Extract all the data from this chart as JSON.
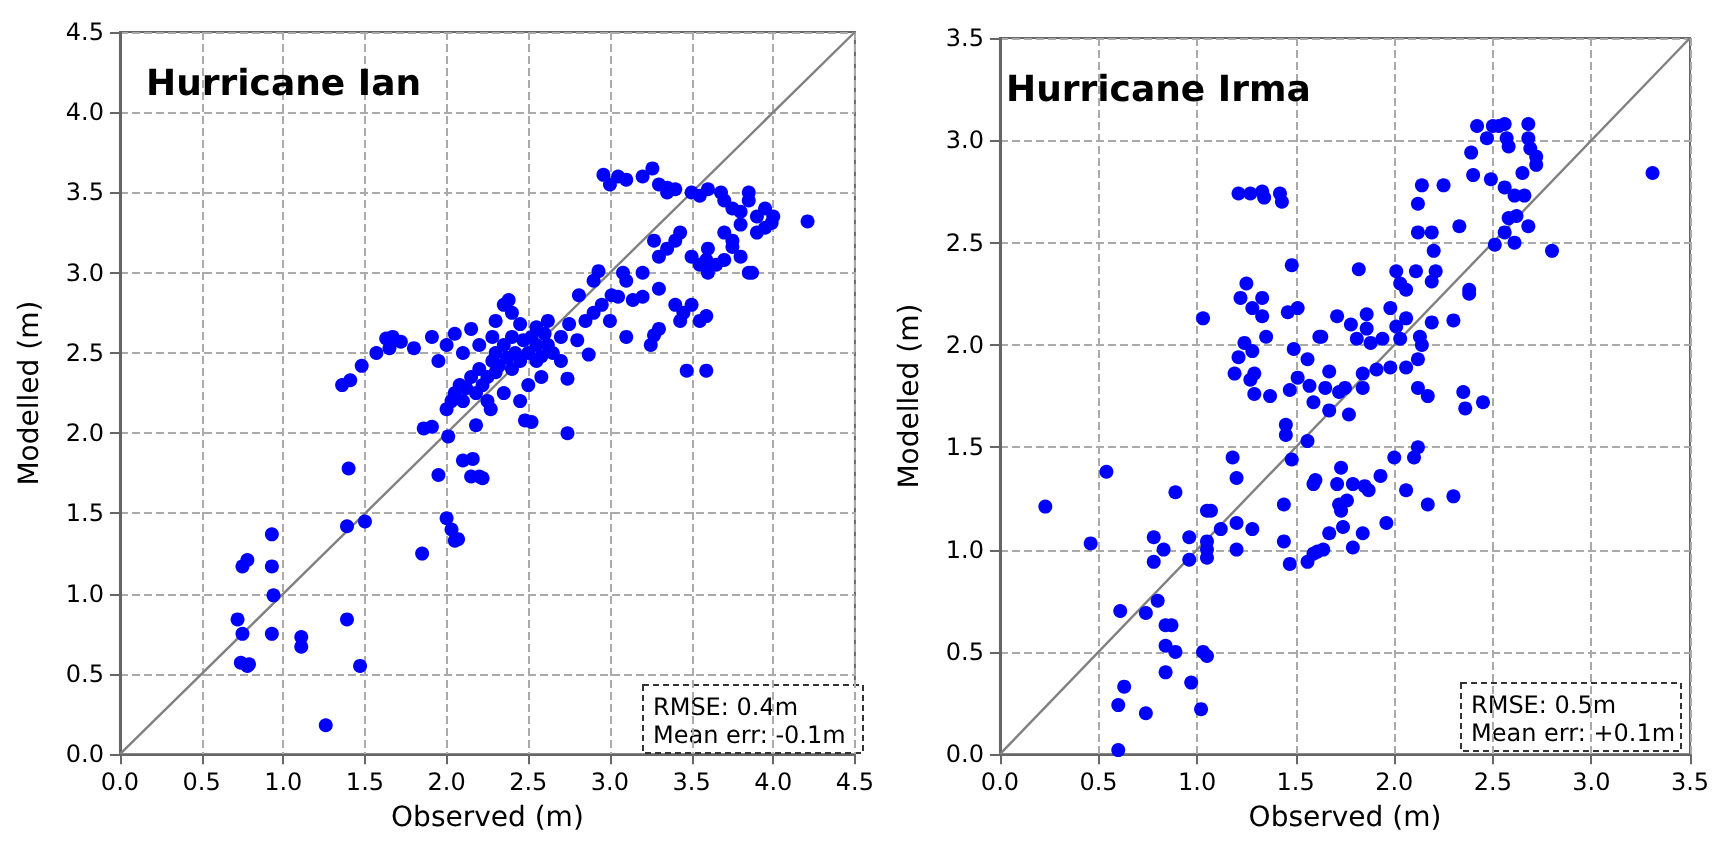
{
  "chart_data": [
    {
      "type": "scatter",
      "title": "Hurricane Ian",
      "xlabel": "Observed (m)",
      "ylabel": "Modelled (m)",
      "annotations": [
        "RMSE: 0.4m",
        "Mean err: -0.1m"
      ],
      "grid": true,
      "xlim": [
        0,
        4.5
      ],
      "ylim": [
        0,
        4.5
      ],
      "xticks": [
        {
          "value": 0,
          "label": "0.0"
        },
        {
          "value": 0.5,
          "label": "0.5"
        },
        {
          "value": 1,
          "label": "1.0"
        },
        {
          "value": 1.5,
          "label": "1.5"
        },
        {
          "value": 2,
          "label": "2.0"
        },
        {
          "value": 2.5,
          "label": "2.5"
        },
        {
          "value": 3,
          "label": "3.0"
        },
        {
          "value": 3.5,
          "label": "3.5"
        },
        {
          "value": 4,
          "label": "4.0"
        },
        {
          "value": 4.5,
          "label": "4.5"
        }
      ],
      "yticks": [
        {
          "value": 0,
          "label": "0.0"
        },
        {
          "value": 0.5,
          "label": "0.5"
        },
        {
          "value": 1,
          "label": "1.0"
        },
        {
          "value": 1.5,
          "label": "1.5"
        },
        {
          "value": 2,
          "label": "2.0"
        },
        {
          "value": 2.5,
          "label": "2.5"
        },
        {
          "value": 3,
          "label": "3.0"
        },
        {
          "value": 3.5,
          "label": "3.5"
        },
        {
          "value": 4,
          "label": "4.0"
        },
        {
          "value": 4.5,
          "label": "4.5"
        }
      ],
      "series": [
        {
          "type": "line",
          "color": "#808080",
          "x": [
            0,
            4.5
          ],
          "values": [
            0,
            4.5
          ]
        },
        {
          "color": "#0000ff",
          "marker": "circle",
          "x": [
            0.72,
            0.75,
            0.74,
            0.78,
            0.79,
            0.75,
            0.78,
            0.93,
            0.93,
            0.94,
            0.93,
            1.11,
            1.11,
            1.26,
            1.39,
            1.39,
            1.4,
            1.47,
            1.5,
            1.36,
            1.41,
            1.48,
            1.57,
            1.65,
            1.72,
            1.8,
            1.63,
            1.67,
            1.91,
            1.85,
            1.86,
            1.91,
            1.95,
            2.0,
            2.03,
            2.05,
            2.07,
            2.01,
            2.1,
            2.15,
            2.2,
            2.96,
            3.26,
            3.35,
            3.68,
            3.8,
            3.99,
            4.21,
            2.93,
            3.08,
            3.27,
            3.43,
            3.59,
            3.87,
            3.75,
            3.01,
            3.14,
            3.27,
            3.43,
            3.59,
            3.47,
            3.59,
            2.87,
            2.74,
            2.48,
            2.74,
            2.22,
            2.16,
            2.81,
            2.62,
            2.38,
            2.0,
            2.03,
            2.05,
            2.08,
            2.1,
            2.12,
            2.15,
            2.18,
            2.2,
            2.22,
            2.25,
            2.28,
            2.3,
            2.3,
            2.32,
            2.35,
            2.37,
            2.4,
            2.4,
            2.42,
            2.45,
            2.47,
            2.5,
            2.52,
            2.55,
            2.58,
            2.6,
            2.25,
            2.35,
            2.2,
            2.1,
            2.0,
            1.95,
            2.05,
            2.15,
            2.3,
            2.35,
            2.4,
            2.45,
            2.55,
            2.62,
            2.65,
            2.7,
            2.75,
            2.8,
            2.85,
            2.9,
            2.95,
            2.7,
            2.58,
            2.5,
            2.45,
            2.55,
            2.28,
            2.18,
            2.27,
            2.52,
            3.0,
            3.05,
            3.1,
            3.2,
            3.3,
            3.35,
            3.4,
            3.5,
            3.55,
            3.6,
            3.7,
            3.75,
            3.85,
            3.9,
            3.95,
            3.8,
            3.75,
            3.7,
            3.6,
            3.55,
            3.6,
            3.65,
            3.7,
            3.8,
            3.85,
            3.5,
            3.4,
            3.35,
            3.3,
            3.2,
            3.1,
            3.05,
            3.2,
            3.3,
            3.4,
            3.45,
            3.5,
            3.55,
            3.0,
            3.1,
            3.25,
            3.3,
            2.9,
            3.85,
            3.9,
            4.0,
            3.95
          ],
          "values": [
            0.84,
            0.75,
            0.57,
            0.55,
            0.56,
            1.17,
            1.21,
            1.37,
            1.17,
            0.99,
            0.75,
            0.73,
            0.67,
            0.18,
            0.84,
            1.42,
            1.78,
            0.55,
            1.45,
            2.3,
            2.33,
            2.42,
            2.5,
            2.53,
            2.57,
            2.53,
            2.59,
            2.6,
            2.6,
            1.25,
            2.03,
            2.04,
            1.74,
            1.47,
            1.4,
            1.33,
            1.34,
            1.98,
            1.83,
            1.73,
            1.73,
            3.61,
            3.65,
            3.53,
            3.5,
            3.38,
            3.31,
            3.32,
            3.01,
            3.0,
            3.2,
            3.25,
            3.08,
            3.0,
            3.16,
            2.86,
            2.83,
            2.61,
            2.7,
            2.73,
            2.39,
            2.39,
            2.49,
            2.34,
            2.08,
            2.0,
            1.72,
            1.84,
            2.86,
            2.7,
            2.83,
            2.15,
            2.2,
            2.25,
            2.3,
            2.2,
            2.28,
            2.35,
            2.25,
            2.4,
            2.3,
            2.35,
            2.45,
            2.38,
            2.5,
            2.42,
            2.55,
            2.47,
            2.4,
            2.6,
            2.5,
            2.45,
            2.58,
            2.5,
            2.6,
            2.55,
            2.48,
            2.62,
            2.2,
            2.25,
            2.55,
            2.5,
            2.55,
            2.45,
            2.62,
            2.65,
            2.7,
            2.8,
            2.75,
            2.68,
            2.66,
            2.55,
            2.5,
            2.6,
            2.68,
            2.58,
            2.7,
            2.75,
            2.8,
            2.45,
            2.35,
            2.3,
            2.2,
            2.45,
            2.6,
            2.05,
            2.15,
            2.07,
            3.55,
            3.6,
            3.58,
            3.6,
            3.55,
            3.5,
            3.52,
            3.5,
            3.48,
            3.52,
            3.45,
            3.4,
            3.45,
            3.35,
            3.4,
            3.3,
            3.2,
            3.25,
            3.15,
            3.05,
            3.0,
            3.05,
            3.08,
            3.1,
            3.0,
            3.1,
            3.2,
            3.15,
            3.1,
            3.0,
            2.95,
            2.85,
            2.85,
            2.9,
            2.8,
            2.75,
            2.8,
            2.7,
            2.7,
            2.6,
            2.55,
            2.65,
            2.95,
            3.5,
            3.25,
            3.35,
            3.28
          ]
        }
      ]
    },
    {
      "type": "scatter",
      "title": "Hurricane Irma",
      "xlabel": "Observed (m)",
      "ylabel": "Modelled (m)",
      "annotations": [
        "RMSE: 0.5m",
        "Mean err: +0.1m"
      ],
      "grid": true,
      "xlim": [
        0,
        3.5
      ],
      "ylim": [
        0,
        3.5
      ],
      "xticks": [
        {
          "value": 0,
          "label": "0.0"
        },
        {
          "value": 0.5,
          "label": "0.5"
        },
        {
          "value": 1,
          "label": "1.0"
        },
        {
          "value": 1.5,
          "label": "1.5"
        },
        {
          "value": 2,
          "label": "2.0"
        },
        {
          "value": 2.5,
          "label": "2.5"
        },
        {
          "value": 3,
          "label": "3.0"
        },
        {
          "value": 3.5,
          "label": "3.5"
        }
      ],
      "yticks": [
        {
          "value": 0,
          "label": "0.0"
        },
        {
          "value": 0.5,
          "label": "0.5"
        },
        {
          "value": 1,
          "label": "1.0"
        },
        {
          "value": 1.5,
          "label": "1.5"
        },
        {
          "value": 2,
          "label": "2.0"
        },
        {
          "value": 2.5,
          "label": "2.5"
        },
        {
          "value": 3,
          "label": "3.0"
        },
        {
          "value": 3.5,
          "label": "3.5"
        }
      ],
      "series": [
        {
          "type": "line",
          "color": "#808080",
          "x": [
            0,
            3.5
          ],
          "values": [
            0,
            3.5
          ]
        },
        {
          "color": "#0000ff",
          "marker": "circle",
          "x": [
            0.23,
            0.46,
            0.54,
            0.6,
            0.6,
            0.63,
            0.61,
            0.74,
            0.74,
            0.8,
            0.78,
            0.78,
            0.83,
            0.89,
            0.84,
            0.87,
            0.84,
            0.89,
            0.84,
            0.97,
            1.02,
            1.03,
            1.05,
            0.96,
            0.96,
            1.05,
            1.05,
            1.05,
            1.05,
            1.07,
            1.12,
            1.2,
            1.2,
            1.28,
            1.18,
            1.2,
            1.03,
            1.21,
            1.27,
            1.33,
            1.34,
            1.42,
            1.43,
            1.48,
            1.25,
            1.22,
            1.33,
            1.28,
            1.33,
            1.46,
            1.51,
            1.24,
            1.28,
            1.21,
            1.19,
            1.27,
            1.29,
            1.29,
            1.37,
            1.35,
            1.49,
            1.51,
            1.47,
            1.45,
            1.45,
            1.48,
            1.56,
            1.6,
            1.44,
            1.44,
            1.47,
            1.56,
            1.61,
            1.62,
            2.42,
            2.47,
            2.5,
            2.53,
            2.56,
            2.57,
            2.58,
            2.68,
            2.68,
            2.69,
            2.72,
            2.72,
            2.39,
            2.4,
            2.49,
            2.65,
            2.56,
            2.61,
            2.66,
            2.58,
            2.62,
            2.68,
            2.56,
            2.51,
            2.61,
            2.8,
            3.31,
            2.33,
            2.25,
            2.14,
            2.12,
            2.12,
            2.19,
            2.2,
            1.82,
            2.01,
            2.03,
            2.06,
            2.11,
            2.21,
            2.19,
            2.38,
            2.38,
            1.98,
            2.06,
            2.3,
            2.19,
            2.01,
            1.86,
            1.71,
            1.78,
            1.86,
            1.63,
            1.81,
            1.88,
            1.94,
            2.03,
            2.14,
            2.13,
            1.56,
            1.98,
            2.06,
            2.12,
            1.91,
            1.84,
            1.67,
            1.57,
            1.65,
            1.75,
            1.84,
            2.12,
            2.17,
            2.35,
            2.36,
            2.45,
            1.59,
            1.67,
            1.77,
            1.72,
            2.12,
            2.1,
            2.0,
            1.93,
            1.85,
            1.87,
            1.79,
            1.73,
            1.71,
            1.59,
            1.72,
            1.76,
            1.73,
            1.74,
            1.84,
            1.79,
            1.67,
            1.64,
            1.59,
            2.06,
            2.17,
            2.3,
            1.96
          ],
          "values": [
            1.21,
            1.03,
            1.38,
            0.02,
            0.24,
            0.33,
            0.7,
            0.2,
            0.69,
            0.75,
            1.06,
            0.94,
            1.0,
            1.28,
            0.63,
            0.63,
            0.53,
            0.5,
            0.4,
            0.35,
            0.22,
            0.5,
            0.48,
            1.06,
            0.95,
            1.04,
            1.0,
            0.96,
            1.19,
            1.19,
            1.1,
            1.13,
            1.0,
            1.1,
            1.45,
            1.35,
            2.13,
            2.74,
            2.74,
            2.75,
            2.72,
            2.74,
            2.7,
            2.39,
            2.3,
            2.23,
            2.23,
            2.18,
            2.14,
            2.16,
            2.18,
            2.01,
            1.97,
            1.94,
            1.86,
            1.83,
            1.86,
            1.76,
            1.75,
            2.04,
            1.98,
            1.84,
            1.78,
            1.61,
            1.56,
            1.44,
            1.53,
            1.34,
            1.22,
            1.04,
            0.93,
            0.94,
            0.99,
            2.04,
            3.07,
            3.01,
            3.07,
            3.07,
            3.08,
            3.01,
            2.97,
            3.08,
            3.01,
            2.96,
            2.92,
            2.88,
            2.94,
            2.83,
            2.81,
            2.84,
            2.77,
            2.73,
            2.73,
            2.62,
            2.63,
            2.58,
            2.55,
            2.49,
            2.5,
            2.46,
            2.84,
            2.58,
            2.78,
            2.78,
            2.69,
            2.55,
            2.55,
            2.46,
            2.37,
            2.36,
            2.3,
            2.27,
            2.36,
            2.36,
            2.31,
            2.27,
            2.25,
            2.18,
            2.13,
            2.12,
            2.11,
            2.09,
            2.15,
            2.14,
            2.1,
            2.08,
            2.04,
            2.03,
            2.01,
            2.03,
            2.03,
            2.0,
            2.04,
            1.93,
            1.89,
            1.89,
            1.93,
            1.88,
            1.86,
            1.87,
            1.8,
            1.79,
            1.79,
            1.79,
            1.79,
            1.75,
            1.77,
            1.69,
            1.72,
            1.72,
            1.68,
            1.66,
            1.77,
            1.5,
            1.45,
            1.45,
            1.36,
            1.31,
            1.29,
            1.32,
            1.4,
            1.32,
            1.32,
            1.22,
            1.24,
            1.19,
            1.11,
            1.08,
            1.01,
            1.08,
            1.0,
            0.98,
            1.29,
            1.22,
            1.26,
            1.13
          ]
        }
      ]
    }
  ]
}
